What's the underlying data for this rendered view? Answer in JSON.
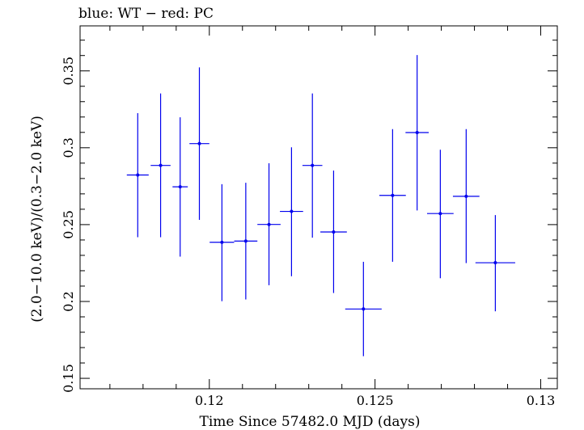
{
  "chart_data": {
    "type": "scatter",
    "title": "blue: WT − red: PC",
    "xlabel": "Time Since 57482.0 MJD (days)",
    "ylabel": "(2.0−10.0 keV)/(0.3−2.0 keV)",
    "xlim": [
      0.1161,
      0.1305
    ],
    "ylim": [
      0.1432,
      0.3793
    ],
    "xticks": [
      0.12,
      0.125,
      0.13
    ],
    "xtick_labels": [
      "0.12",
      "0.125",
      "0.13"
    ],
    "yticks": [
      0.15,
      0.2,
      0.25,
      0.3,
      0.35
    ],
    "ytick_labels": [
      "0.15",
      "0.2",
      "0.25",
      "0.3",
      "0.35"
    ],
    "series": [
      {
        "name": "WT",
        "color": "#0000ee",
        "points": [
          {
            "x": 0.11784,
            "xerr": 0.00033,
            "y": 0.2823,
            "ylo": 0.2418,
            "yhi": 0.3225
          },
          {
            "x": 0.11853,
            "xerr": 0.0003,
            "y": 0.2885,
            "ylo": 0.2418,
            "yhi": 0.3353
          },
          {
            "x": 0.11912,
            "xerr": 0.00023,
            "y": 0.2746,
            "ylo": 0.2292,
            "yhi": 0.3198
          },
          {
            "x": 0.1197,
            "xerr": 0.0003,
            "y": 0.3027,
            "ylo": 0.2531,
            "yhi": 0.3523
          },
          {
            "x": 0.12038,
            "xerr": 0.00037,
            "y": 0.2385,
            "ylo": 0.2002,
            "yhi": 0.2763
          },
          {
            "x": 0.1211,
            "xerr": 0.00035,
            "y": 0.2393,
            "ylo": 0.2013,
            "yhi": 0.2772
          },
          {
            "x": 0.1218,
            "xerr": 0.00035,
            "y": 0.2501,
            "ylo": 0.2106,
            "yhi": 0.2899
          },
          {
            "x": 0.12248,
            "xerr": 0.00035,
            "y": 0.2586,
            "ylo": 0.2164,
            "yhi": 0.3003
          },
          {
            "x": 0.12311,
            "xerr": 0.0003,
            "y": 0.2885,
            "ylo": 0.2415,
            "yhi": 0.3353
          },
          {
            "x": 0.12375,
            "xerr": 0.0004,
            "y": 0.2452,
            "ylo": 0.2055,
            "yhi": 0.2852
          },
          {
            "x": 0.12465,
            "xerr": 0.00055,
            "y": 0.1951,
            "ylo": 0.1644,
            "yhi": 0.2258
          },
          {
            "x": 0.12553,
            "xerr": 0.0004,
            "y": 0.269,
            "ylo": 0.2258,
            "yhi": 0.3121
          },
          {
            "x": 0.12627,
            "xerr": 0.00035,
            "y": 0.3099,
            "ylo": 0.2592,
            "yhi": 0.3603
          },
          {
            "x": 0.12697,
            "xerr": 0.0004,
            "y": 0.2572,
            "ylo": 0.2151,
            "yhi": 0.2987
          },
          {
            "x": 0.12775,
            "xerr": 0.0004,
            "y": 0.2684,
            "ylo": 0.225,
            "yhi": 0.3121
          },
          {
            "x": 0.12863,
            "xerr": 0.0006,
            "y": 0.2252,
            "ylo": 0.1936,
            "yhi": 0.2562
          }
        ]
      }
    ]
  }
}
